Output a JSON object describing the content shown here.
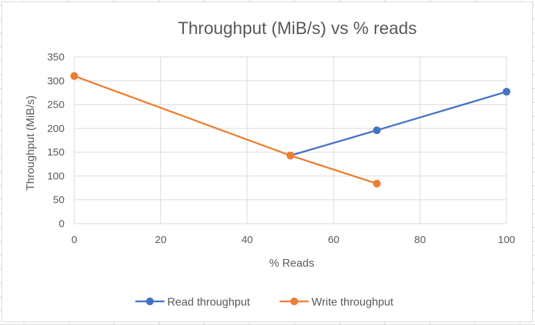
{
  "chart_data": {
    "type": "scatter",
    "title": "Throughput (MiB/s) vs % reads",
    "xlabel": "% Reads",
    "ylabel": "Throughput (MiB/s)",
    "xlim": [
      0,
      100
    ],
    "ylim": [
      0,
      350
    ],
    "xticks": [
      0,
      20,
      40,
      60,
      80,
      100
    ],
    "yticks": [
      0,
      50,
      100,
      150,
      200,
      250,
      300,
      350
    ],
    "grid": true,
    "legend_position": "bottom",
    "series": [
      {
        "name": "Read throughput",
        "color": "#4472C4",
        "points": [
          [
            50,
            143
          ],
          [
            70,
            196
          ],
          [
            100,
            277
          ]
        ]
      },
      {
        "name": "Write throughput",
        "color": "#ED7D31",
        "points": [
          [
            0,
            310
          ],
          [
            50,
            143
          ],
          [
            70,
            84
          ]
        ]
      }
    ]
  }
}
